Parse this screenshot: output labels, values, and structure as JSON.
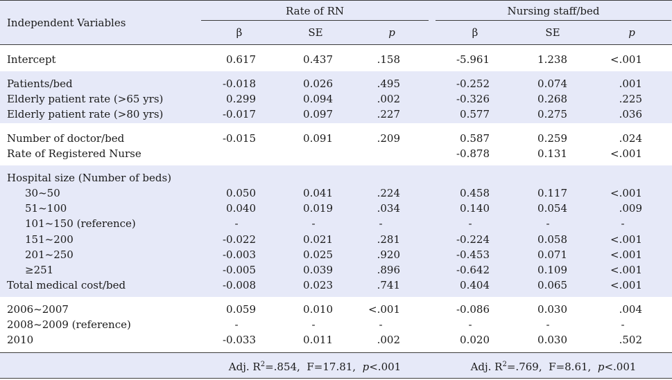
{
  "header": {
    "independent_variables": "Independent Variables",
    "group_rn": "Rate of RN",
    "group_staff": "Nursing staff/bed",
    "beta": "β",
    "se": "SE",
    "p": "p"
  },
  "rows": [
    {
      "label": "Intercept",
      "rn_b": "0.617",
      "rn_se": "0.437",
      "rn_p": ".158",
      "ns_b": "-5.961",
      "ns_se": "1.238",
      "ns_p": "<.001"
    },
    {
      "label": "Patients/bed",
      "rn_b": "-0.018",
      "rn_se": "0.026",
      "rn_p": ".495",
      "ns_b": "-0.252",
      "ns_se": "0.074",
      "ns_p": ".001"
    },
    {
      "label": "Elderly patient rate (>65 yrs)",
      "rn_b": "0.299",
      "rn_se": "0.094",
      "rn_p": ".002",
      "ns_b": "-0.326",
      "ns_se": "0.268",
      "ns_p": ".225"
    },
    {
      "label": "Elderly patient rate (>80 yrs)",
      "rn_b": "-0.017",
      "rn_se": "0.097",
      "rn_p": ".227",
      "ns_b": "0.577",
      "ns_se": "0.275",
      "ns_p": ".036"
    },
    {
      "label": "Number of doctor/bed",
      "rn_b": "-0.015",
      "rn_se": "0.091",
      "rn_p": ".209",
      "ns_b": "0.587",
      "ns_se": "0.259",
      "ns_p": ".024"
    },
    {
      "label": "Rate of Registered Nurse",
      "rn_b": "",
      "rn_se": "",
      "rn_p": "",
      "ns_b": "-0.878",
      "ns_se": "0.131",
      "ns_p": "<.001"
    },
    {
      "label": "Hospital size (Number of beds)",
      "rn_b": "",
      "rn_se": "",
      "rn_p": "",
      "ns_b": "",
      "ns_se": "",
      "ns_p": ""
    },
    {
      "label": "30~50",
      "rn_b": "0.050",
      "rn_se": "0.041",
      "rn_p": ".224",
      "ns_b": "0.458",
      "ns_se": "0.117",
      "ns_p": "<.001"
    },
    {
      "label": "51~100",
      "rn_b": "0.040",
      "rn_se": "0.019",
      "rn_p": ".034",
      "ns_b": "0.140",
      "ns_se": "0.054",
      "ns_p": ".009"
    },
    {
      "label": "101~150 (reference)",
      "rn_b": "-",
      "rn_se": "-",
      "rn_p": "-",
      "ns_b": "-",
      "ns_se": "-",
      "ns_p": "-"
    },
    {
      "label": "151~200",
      "rn_b": "-0.022",
      "rn_se": "0.021",
      "rn_p": ".281",
      "ns_b": "-0.224",
      "ns_se": "0.058",
      "ns_p": "<.001"
    },
    {
      "label": "201~250",
      "rn_b": "-0.003",
      "rn_se": "0.025",
      "rn_p": ".920",
      "ns_b": "-0.453",
      "ns_se": "0.071",
      "ns_p": "<.001"
    },
    {
      "label": "≥251",
      "rn_b": "-0.005",
      "rn_se": "0.039",
      "rn_p": ".896",
      "ns_b": "-0.642",
      "ns_se": "0.109",
      "ns_p": "<.001"
    },
    {
      "label": "Total medical cost/bed",
      "rn_b": "-0.008",
      "rn_se": "0.023",
      "rn_p": ".741",
      "ns_b": "0.404",
      "ns_se": "0.065",
      "ns_p": "<.001"
    },
    {
      "label": "2006~2007",
      "rn_b": "0.059",
      "rn_se": "0.010",
      "rn_p": "<.001",
      "ns_b": "-0.086",
      "ns_se": "0.030",
      "ns_p": ".004"
    },
    {
      "label": "2008~2009 (reference)",
      "rn_b": "-",
      "rn_se": "-",
      "rn_p": "-",
      "ns_b": "-",
      "ns_se": "-",
      "ns_p": "-"
    },
    {
      "label": "2010",
      "rn_b": "-0.033",
      "rn_se": "0.011",
      "rn_p": ".002",
      "ns_b": "0.020",
      "ns_se": "0.030",
      "ns_p": ".502"
    }
  ],
  "footer": {
    "rn": {
      "adj": "Adj. R",
      "sup": "2",
      "r2": "=.854,",
      "f": "F=17.81,",
      "p_label": "p",
      "p_val": "<.001"
    },
    "staff": {
      "adj": "Adj. R",
      "sup": "2",
      "r2": "=.769,",
      "f": "F=8.61,",
      "p_label": "p",
      "p_val": "<.001"
    }
  }
}
